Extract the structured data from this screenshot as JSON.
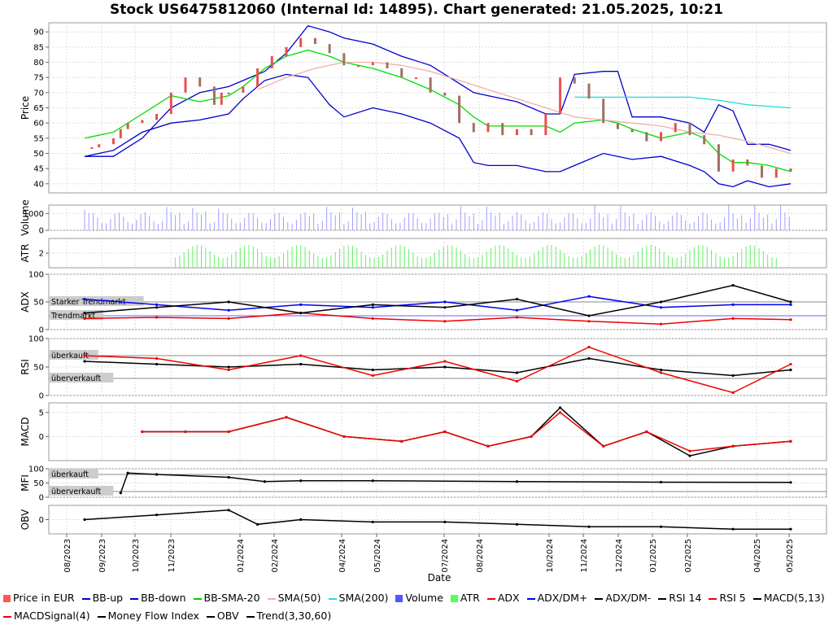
{
  "title": "Stock US6475812060 (Internal Id: 14895). Chart generated: 21.05.2025, 10:21",
  "x_axis_label": "Date",
  "x_ticks": [
    "08/2023",
    "09/2023",
    "10/2023",
    "11/2023",
    "01/2024",
    "02/2024",
    "04/2024",
    "05/2024",
    "07/2024",
    "08/2024",
    "10/2024",
    "11/2024",
    "12/2024",
    "01/2025",
    "02/2025",
    "04/2025",
    "05/2025"
  ],
  "colors": {
    "price_up": "#e85050",
    "price_down": "#a07060",
    "bb": "#0000cc",
    "bb_sma": "#00dd00",
    "sma50": "#f0b0a8",
    "sma200": "#22dddd",
    "volume": "#6060ff",
    "atr": "#66ee66",
    "adx": "#ee0000",
    "dmplus": "#0000ee",
    "dmminus": "#000000",
    "rsi14": "#000000",
    "rsi5": "#ee0000",
    "macd": "#000000",
    "macd_signal": "#ee0000",
    "mfi": "#000000",
    "obv": "#000000"
  },
  "legend": [
    {
      "label": "Price in EUR",
      "kind": "box",
      "color": "#ff5555"
    },
    {
      "label": "BB-up",
      "kind": "line",
      "color": "#0000cc"
    },
    {
      "label": "BB-down",
      "kind": "line",
      "color": "#0000cc"
    },
    {
      "label": "BB-SMA-20",
      "kind": "line",
      "color": "#00cc00"
    },
    {
      "label": "SMA(50)",
      "kind": "line",
      "color": "#f0b0a8"
    },
    {
      "label": "SMA(200)",
      "kind": "line",
      "color": "#22dddd"
    },
    {
      "label": "Volume",
      "kind": "box",
      "color": "#5555ff"
    },
    {
      "label": "ATR",
      "kind": "box",
      "color": "#55ff55"
    },
    {
      "label": "ADX",
      "kind": "dotline",
      "color": "#ee0000"
    },
    {
      "label": "ADX/DM+",
      "kind": "dotline",
      "color": "#0000ee"
    },
    {
      "label": "ADX/DM-",
      "kind": "dotline",
      "color": "#000000"
    },
    {
      "label": "RSI 14",
      "kind": "dotline",
      "color": "#000000"
    },
    {
      "label": "RSI 5",
      "kind": "dotline",
      "color": "#ee0000"
    },
    {
      "label": "MACD(5,13)",
      "kind": "dotline",
      "color": "#000000"
    },
    {
      "label": "MACDSignal(4)",
      "kind": "dotline",
      "color": "#ee0000"
    },
    {
      "label": "Money Flow Index",
      "kind": "dotline",
      "color": "#000000"
    },
    {
      "label": "OBV",
      "kind": "dotline",
      "color": "#000000"
    },
    {
      "label": "Trend(3,30,60)",
      "kind": "line",
      "color": "#000000"
    }
  ],
  "chart_data": [
    {
      "type": "line",
      "panel": "price",
      "ylabel": "Price",
      "ylim": [
        37,
        93
      ],
      "yticks": [
        40,
        45,
        50,
        55,
        60,
        65,
        70,
        75,
        80,
        85,
        90
      ],
      "grid": true,
      "series": [
        {
          "name": "BB-up",
          "x": [
            0,
            4,
            8,
            12,
            16,
            20,
            22,
            25,
            28,
            31,
            34,
            36,
            40,
            44,
            48,
            52,
            54,
            56,
            60,
            64,
            66,
            68,
            72,
            74,
            76,
            80,
            84,
            86,
            88,
            90,
            92,
            95,
            98
          ],
          "values": [
            49,
            49,
            55,
            65,
            70,
            72,
            74,
            77,
            83,
            92,
            90,
            88,
            86,
            82,
            79,
            73,
            70,
            69,
            67,
            63,
            63,
            76,
            77,
            77,
            62,
            62,
            60,
            57,
            66,
            64,
            53,
            53,
            51
          ]
        },
        {
          "name": "BB-down",
          "x": [
            0,
            4,
            8,
            12,
            16,
            20,
            22,
            25,
            28,
            31,
            34,
            36,
            40,
            44,
            48,
            52,
            54,
            56,
            60,
            64,
            66,
            68,
            72,
            74,
            76,
            80,
            84,
            86,
            88,
            90,
            92,
            95,
            98
          ],
          "values": [
            49,
            51,
            57,
            60,
            61,
            63,
            68,
            74,
            76,
            75,
            66,
            62,
            65,
            63,
            60,
            55,
            47,
            46,
            46,
            44,
            44,
            46,
            50,
            49,
            48,
            49,
            46,
            44,
            40,
            39,
            41,
            39,
            40
          ]
        },
        {
          "name": "BB-SMA-20",
          "x": [
            0,
            4,
            8,
            12,
            16,
            20,
            22,
            25,
            28,
            31,
            34,
            36,
            40,
            44,
            48,
            52,
            54,
            56,
            60,
            64,
            66,
            68,
            72,
            74,
            76,
            80,
            84,
            86,
            88,
            90,
            92,
            95,
            98
          ],
          "values": [
            55,
            57,
            63,
            69,
            67,
            69,
            72,
            78,
            82,
            84,
            82,
            80,
            78,
            75,
            71,
            66,
            62,
            59,
            59,
            59,
            57,
            60,
            61,
            60,
            58,
            55,
            57,
            55,
            50,
            47,
            47,
            46,
            44
          ]
        },
        {
          "name": "SMA(50)",
          "x": [
            24,
            28,
            32,
            36,
            40,
            44,
            48,
            52,
            56,
            60,
            64,
            68,
            72,
            76,
            80,
            84,
            88,
            92,
            98
          ],
          "values": [
            71,
            75,
            78,
            80,
            80,
            79,
            77,
            74,
            71,
            68,
            65,
            62,
            61,
            60,
            59,
            57,
            56,
            54,
            50
          ]
        },
        {
          "name": "SMA(200)",
          "x": [
            68,
            72,
            76,
            80,
            84,
            88,
            92,
            95,
            98
          ],
          "values": [
            68.5,
            68.5,
            68.5,
            68.5,
            68.5,
            67.5,
            66,
            65.5,
            65
          ]
        }
      ],
      "candles_close": {
        "x": [
          1,
          2,
          4,
          5,
          6,
          8,
          10,
          12,
          14,
          16,
          18,
          19,
          20,
          22,
          24,
          26,
          28,
          30,
          32,
          34,
          36,
          38,
          40,
          42,
          44,
          46,
          48,
          50,
          52,
          54,
          56,
          58,
          60,
          62,
          64,
          66,
          68,
          70,
          72,
          74,
          76,
          78,
          80,
          82,
          84,
          86,
          88,
          90,
          92,
          94,
          96,
          98
        ],
        "values": [
          52,
          53,
          55,
          58,
          60,
          61,
          63,
          70,
          75,
          72,
          66,
          70,
          70,
          72,
          78,
          82,
          85,
          88,
          86,
          83,
          79,
          79,
          80,
          78,
          75,
          75,
          70,
          69,
          60,
          57,
          60,
          56,
          58,
          56,
          63,
          75,
          73,
          68,
          60,
          58,
          57,
          54,
          57,
          60,
          56,
          53,
          44,
          48,
          46,
          42,
          45,
          44
        ]
      }
    },
    {
      "type": "bar",
      "panel": "volume",
      "ylabel": "Volume",
      "ylim": [
        0,
        1500
      ],
      "yticks": [
        0,
        1000
      ]
    },
    {
      "type": "bar",
      "panel": "atr",
      "ylabel": "ATR",
      "ylim": [
        0,
        4
      ],
      "yticks": [
        2
      ]
    },
    {
      "type": "line",
      "panel": "adx",
      "ylabel": "ADX",
      "ylim": [
        0,
        100
      ],
      "yticks": [
        0,
        50,
        100
      ],
      "annotations": [
        "Starker Trendmarkt",
        "Trendmarkt"
      ],
      "reference_lines": [
        50,
        25
      ],
      "series": [
        {
          "name": "ADX",
          "x": [
            0,
            10,
            20,
            30,
            40,
            50,
            60,
            70,
            80,
            90,
            98
          ],
          "values": [
            20,
            22,
            20,
            30,
            20,
            15,
            22,
            15,
            10,
            20,
            18
          ]
        },
        {
          "name": "ADX/DM+",
          "x": [
            0,
            10,
            20,
            30,
            40,
            50,
            60,
            70,
            80,
            90,
            98
          ],
          "values": [
            55,
            45,
            35,
            45,
            40,
            50,
            35,
            60,
            40,
            45,
            45
          ]
        },
        {
          "name": "ADX/DM-",
          "x": [
            0,
            10,
            20,
            30,
            40,
            50,
            60,
            70,
            80,
            90,
            98
          ],
          "values": [
            30,
            40,
            50,
            30,
            45,
            40,
            55,
            25,
            50,
            80,
            50
          ]
        }
      ]
    },
    {
      "type": "line",
      "panel": "rsi",
      "ylabel": "RSI",
      "ylim": [
        0,
        100
      ],
      "yticks": [
        0,
        50,
        100
      ],
      "annotations": [
        "überkauft",
        "überverkauft"
      ],
      "reference_lines": [
        70,
        30
      ],
      "series": [
        {
          "name": "RSI 14",
          "x": [
            0,
            10,
            20,
            30,
            40,
            50,
            60,
            70,
            80,
            90,
            98
          ],
          "values": [
            60,
            55,
            50,
            55,
            45,
            50,
            40,
            65,
            45,
            35,
            45
          ]
        },
        {
          "name": "RSI 5",
          "x": [
            0,
            10,
            20,
            30,
            40,
            50,
            60,
            70,
            80,
            90,
            98
          ],
          "values": [
            70,
            65,
            45,
            70,
            35,
            60,
            25,
            85,
            40,
            5,
            55
          ]
        }
      ]
    },
    {
      "type": "line",
      "panel": "macd",
      "ylabel": "MACD",
      "ylim": [
        -5,
        7
      ],
      "yticks": [
        0,
        5
      ],
      "series": [
        {
          "name": "MACD(5,13)",
          "x": [
            8,
            14,
            20,
            28,
            36,
            44,
            50,
            56,
            62,
            66,
            72,
            78,
            84,
            90,
            98
          ],
          "values": [
            1,
            1,
            1,
            4,
            0,
            -1,
            1,
            -2,
            0,
            6,
            -2,
            1,
            -4,
            -2,
            -1
          ]
        },
        {
          "name": "MACDSignal(4)",
          "x": [
            8,
            14,
            20,
            28,
            36,
            44,
            50,
            56,
            62,
            66,
            72,
            78,
            84,
            90,
            98
          ],
          "values": [
            1,
            1,
            1,
            4,
            0,
            -1,
            1,
            -2,
            0,
            5,
            -2,
            1,
            -3,
            -2,
            -1
          ]
        }
      ]
    },
    {
      "type": "line",
      "panel": "mfi",
      "ylabel": "MFI",
      "ylim": [
        0,
        100
      ],
      "yticks": [
        0,
        50,
        100
      ],
      "annotations": [
        "überkauft",
        "überverkauft"
      ],
      "reference_lines": [
        80,
        20
      ],
      "series": [
        {
          "name": "Money Flow Index",
          "x": [
            5,
            6,
            10,
            20,
            25,
            30,
            40,
            60,
            80,
            98
          ],
          "values": [
            15,
            85,
            80,
            70,
            55,
            58,
            58,
            55,
            53,
            52
          ]
        }
      ]
    },
    {
      "type": "line",
      "panel": "obv",
      "ylabel": "OBV",
      "yticks": [
        0
      ],
      "series": [
        {
          "name": "OBV",
          "x": [
            0,
            10,
            20,
            24,
            30,
            40,
            50,
            60,
            70,
            80,
            90,
            98
          ],
          "values": [
            0,
            2,
            4,
            -2,
            0,
            -1,
            -1,
            -2,
            -3,
            -3,
            -4,
            -4
          ]
        }
      ]
    }
  ]
}
